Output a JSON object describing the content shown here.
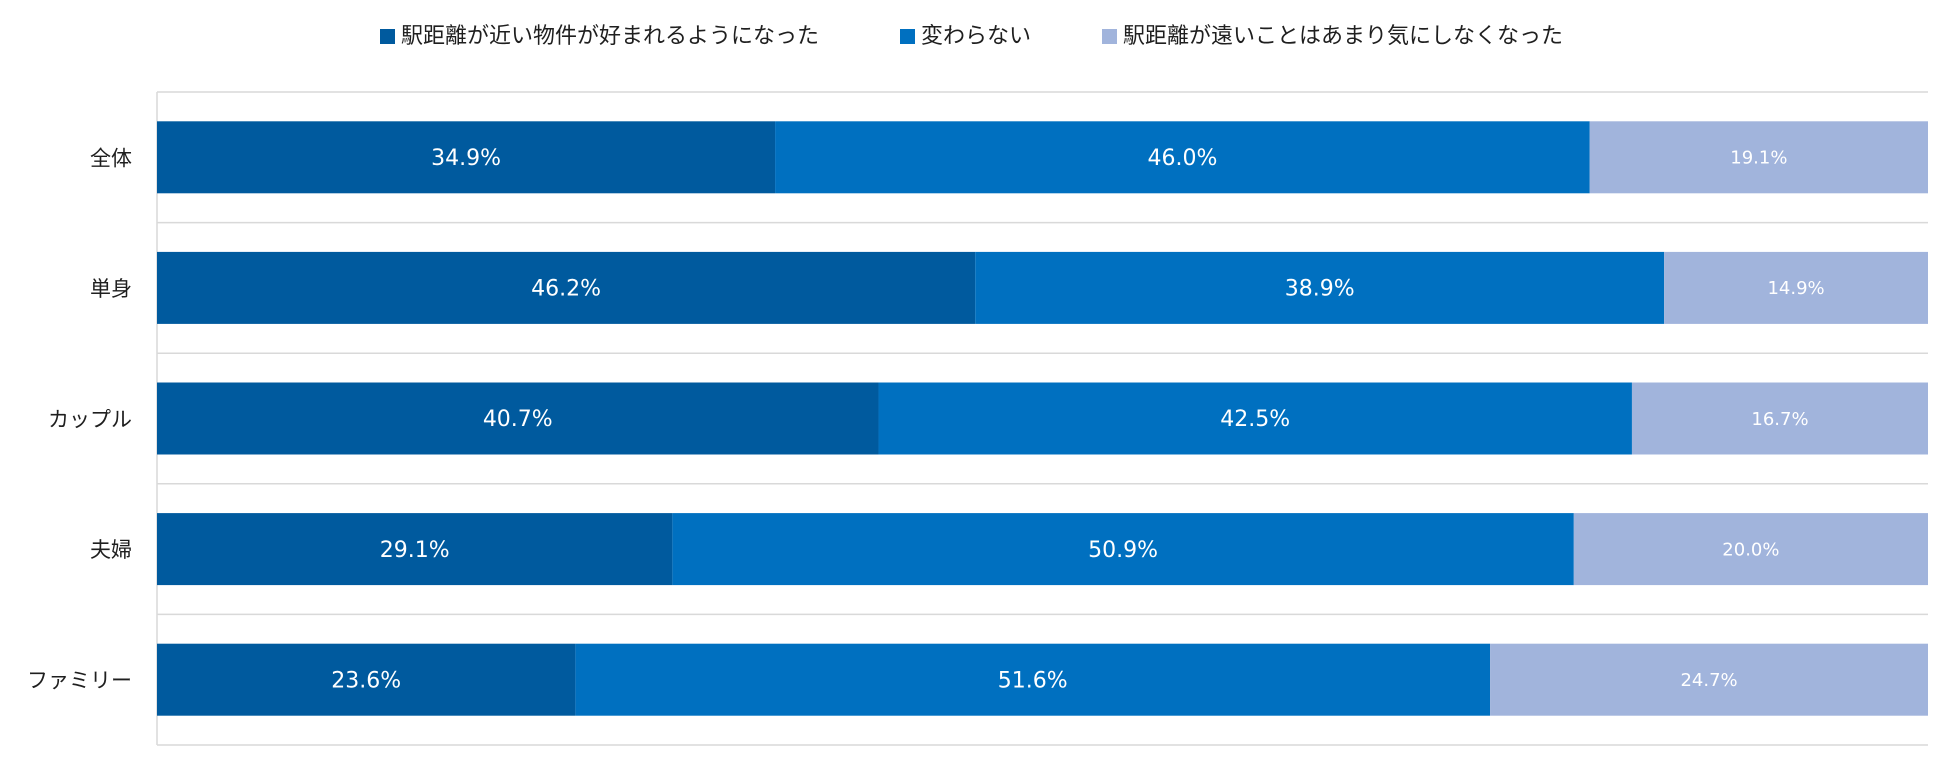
{
  "chart_data": {
    "type": "bar",
    "orientation": "horizontal",
    "stacked": "percent",
    "categories": [
      "全体",
      "単身",
      "カップル",
      "夫婦",
      "ファミリー"
    ],
    "series": [
      {
        "name": "駅距離が近い物件が好まれるようになった",
        "color": "#005a9e",
        "values": [
          34.9,
          46.2,
          40.7,
          29.1,
          23.6
        ],
        "labels": [
          "34.9%",
          "46.2%",
          "40.7%",
          "29.1%",
          "23.6%"
        ]
      },
      {
        "name": "変わらない",
        "color": "#0070c0",
        "values": [
          46.0,
          38.9,
          42.5,
          50.9,
          51.6
        ],
        "labels": [
          "46.0%",
          "38.9%",
          "42.5%",
          "50.9%",
          "51.6%"
        ]
      },
      {
        "name": "駅距離が遠いことはあまり気にしなくなった",
        "color": "#a1b4dc",
        "values": [
          19.1,
          14.9,
          16.7,
          20.0,
          24.7
        ],
        "labels": [
          "19.1%",
          "14.9%",
          "16.7%",
          "20.0%",
          "24.7%"
        ]
      }
    ],
    "xlim": [
      0,
      100
    ],
    "legend": "top",
    "grid": "horizontal-separators"
  }
}
